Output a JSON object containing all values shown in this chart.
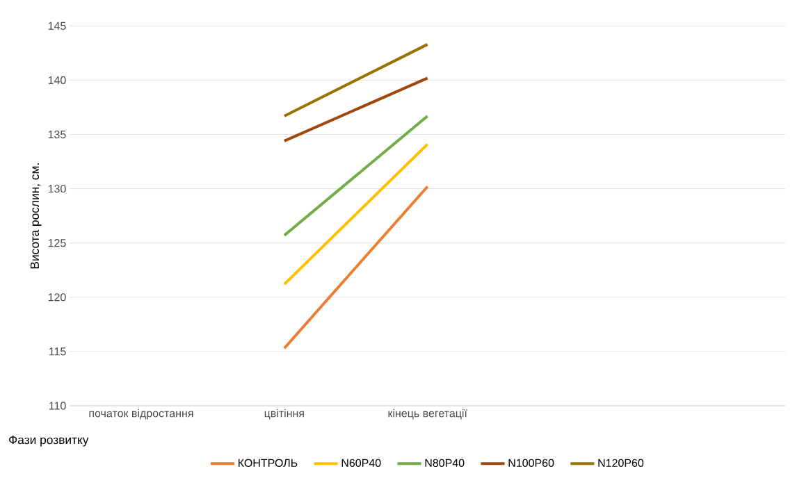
{
  "chart_data": {
    "type": "line",
    "xlabel": "Фази розвитку",
    "ylabel": "Висота рослин, см.",
    "categories": [
      "початок відростання",
      "цвітіння",
      "кінець вегетації",
      null,
      null
    ],
    "series": [
      {
        "name": "КОНТРОЛЬ",
        "color": "#ed7d31",
        "values": [
          null,
          115.3,
          130.2,
          null,
          null
        ]
      },
      {
        "name": "N60P40",
        "color": "#ffc000",
        "values": [
          null,
          121.2,
          134.1,
          null,
          null
        ]
      },
      {
        "name": "N80P40",
        "color": "#70ad47",
        "values": [
          null,
          125.7,
          136.7,
          null,
          null
        ]
      },
      {
        "name": "N100P60",
        "color": "#9e480e",
        "values": [
          null,
          134.4,
          140.2,
          null,
          null
        ]
      },
      {
        "name": "N120P60",
        "color": "#997300",
        "values": [
          null,
          136.7,
          143.3,
          null,
          null
        ]
      }
    ],
    "ylim": [
      110,
      145
    ],
    "yticks": [
      110,
      115,
      120,
      125,
      130,
      135,
      140,
      145
    ],
    "grid": "y",
    "legend": "bottom",
    "marker": "none",
    "line_style": "solid"
  }
}
